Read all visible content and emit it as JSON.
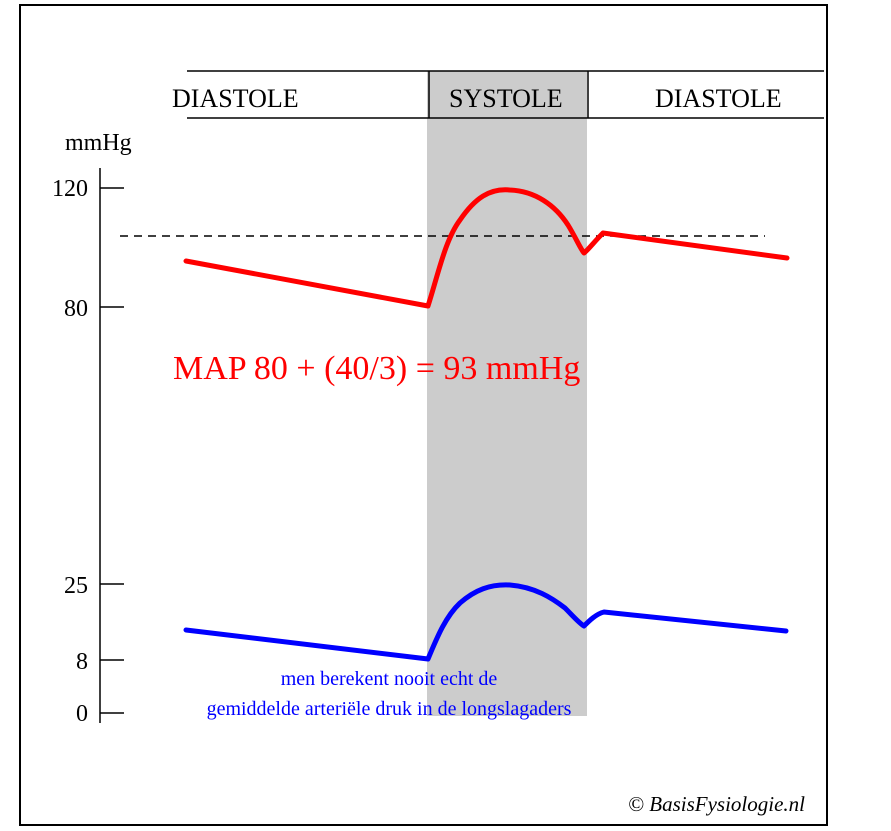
{
  "phases": [
    "DIASTOLE",
    "SYSTOLE",
    "DIASTOLE"
  ],
  "unit": "mmHg",
  "y_ticks": [
    "120",
    "80",
    "25",
    "8",
    "0"
  ],
  "map_formula": "MAP 80 + (40/3) = 93 mmHg",
  "note_line1": "men berekent nooit echt de",
  "note_line2": "gemiddelde arteriële druk in de longslagaders",
  "copyright": "© BasisFysiologie.nl",
  "colors": {
    "systemic": "#ff0000",
    "pulmonary": "#0000ff",
    "systole_band": "#cccccc"
  },
  "chart_data": {
    "type": "line",
    "phases": [
      "DIASTOLE",
      "SYSTOLE",
      "DIASTOLE"
    ],
    "ylabel": "mmHg",
    "tick_values": [
      120,
      80,
      25,
      8,
      0
    ],
    "series": [
      {
        "points": [
          [
            0,
            95
          ],
          [
            0.39,
            80
          ],
          [
            0.45,
            110
          ],
          [
            0.52,
            118
          ],
          [
            0.62,
            110
          ],
          [
            0.66,
            98
          ],
          [
            0.69,
            103
          ],
          [
            1.0,
            96
          ]
        ],
        "reference_line": 104
      },
      {
        "points": [
          [
            0,
            13
          ],
          [
            0.39,
            8
          ],
          [
            0.45,
            20
          ],
          [
            0.52,
            25
          ],
          [
            0.62,
            20
          ],
          [
            0.66,
            14
          ],
          [
            0.69,
            17
          ],
          [
            1.0,
            13
          ]
        ]
      }
    ]
  }
}
